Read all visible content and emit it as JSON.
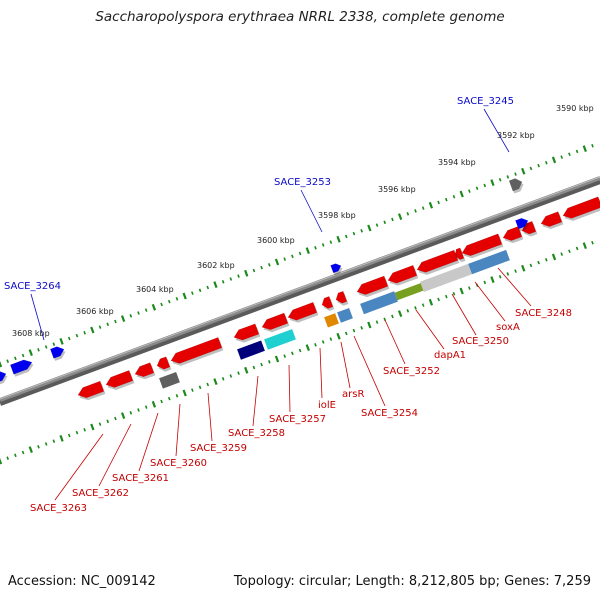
{
  "title": "Saccharopolyspora erythraea NRRL 2338, complete genome",
  "footer": {
    "accession": "Accession: NC_009142",
    "summary": "Topology: circular; Length: 8,212,805 bp; Genes: 7,259"
  },
  "scale_labels": [
    "3590 kbp",
    "3592 kbp",
    "3594 kbp",
    "3596 kbp",
    "3598 kbp",
    "3600 kbp",
    "3602 kbp",
    "3604 kbp",
    "3606 kbp",
    "3608 kbp"
  ],
  "gene_labels": {
    "forward": [
      "SACE_3245",
      "SACE_3253",
      "SACE_3264"
    ],
    "reverse": [
      "SACE_3248",
      "soxA",
      "SACE_3250",
      "dapA1",
      "SACE_3252",
      "SACE_3254",
      "arsR",
      "iolE",
      "SACE_3257",
      "SACE_3258",
      "SACE_3259",
      "SACE_3260",
      "SACE_3261",
      "SACE_3262",
      "SACE_3263"
    ]
  },
  "colors": {
    "backbone": "#8a8a8a",
    "reverse_gene": "#e50000",
    "forward_gene": "#0000ee",
    "navy_gene": "#00007a",
    "cyan_gene": "#20d0d0",
    "orange_gene": "#e08800",
    "steelblue_feature": "#4a86c0",
    "lightgray_feature": "#c8c8c8",
    "olive_feature": "#78a020",
    "gray_gene": "#606060",
    "tick_green": "#1a8a1a",
    "label_blue": "#0a0ac8",
    "label_red": "#c40000"
  }
}
